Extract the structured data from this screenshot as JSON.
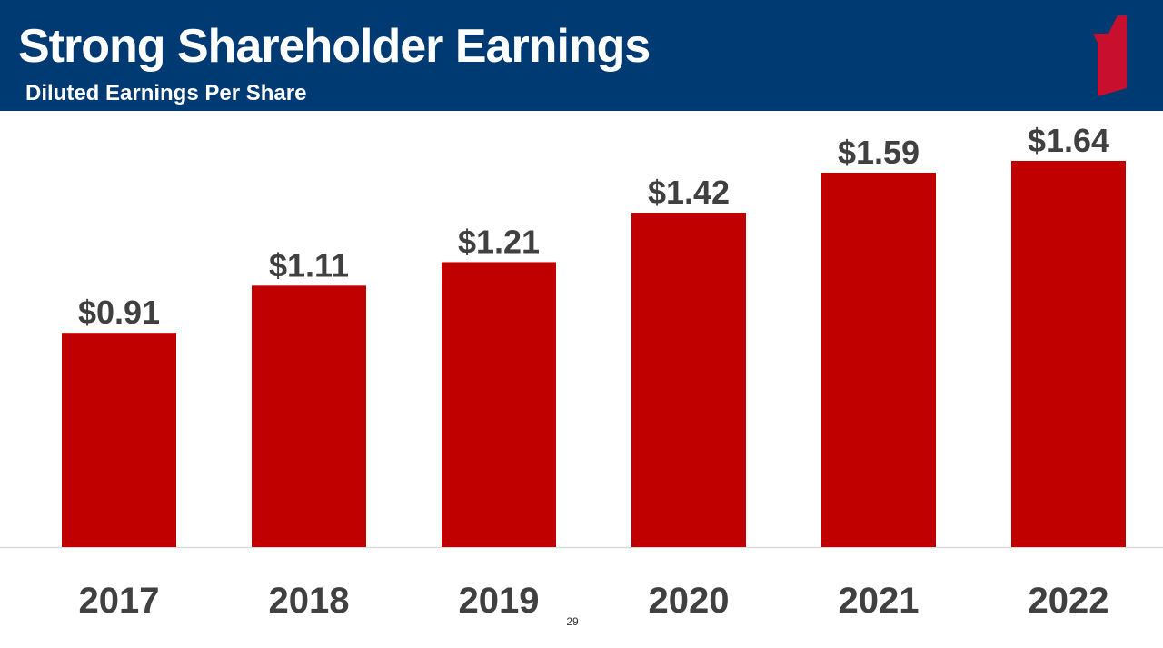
{
  "slide": {
    "title": "Strong Shareholder Earnings",
    "subtitle": "Diluted Earnings Per Share",
    "page_number": "29"
  },
  "colors": {
    "header_bg": "#003a73",
    "bar": "#c00000",
    "logo": "#c8102e",
    "label_text": "#404040"
  },
  "chart_data": {
    "type": "bar",
    "title": "Diluted Earnings Per Share",
    "categories": [
      "2017",
      "2018",
      "2019",
      "2020",
      "2021",
      "2022"
    ],
    "values": [
      0.91,
      1.11,
      1.21,
      1.42,
      1.59,
      1.64
    ],
    "data_labels": [
      "$0.91",
      "$1.11",
      "$1.21",
      "$1.42",
      "$1.59",
      "$1.64"
    ],
    "xlabel": "",
    "ylabel": "",
    "ylim": [
      0,
      1.64
    ],
    "grid": false,
    "legend": "none"
  }
}
